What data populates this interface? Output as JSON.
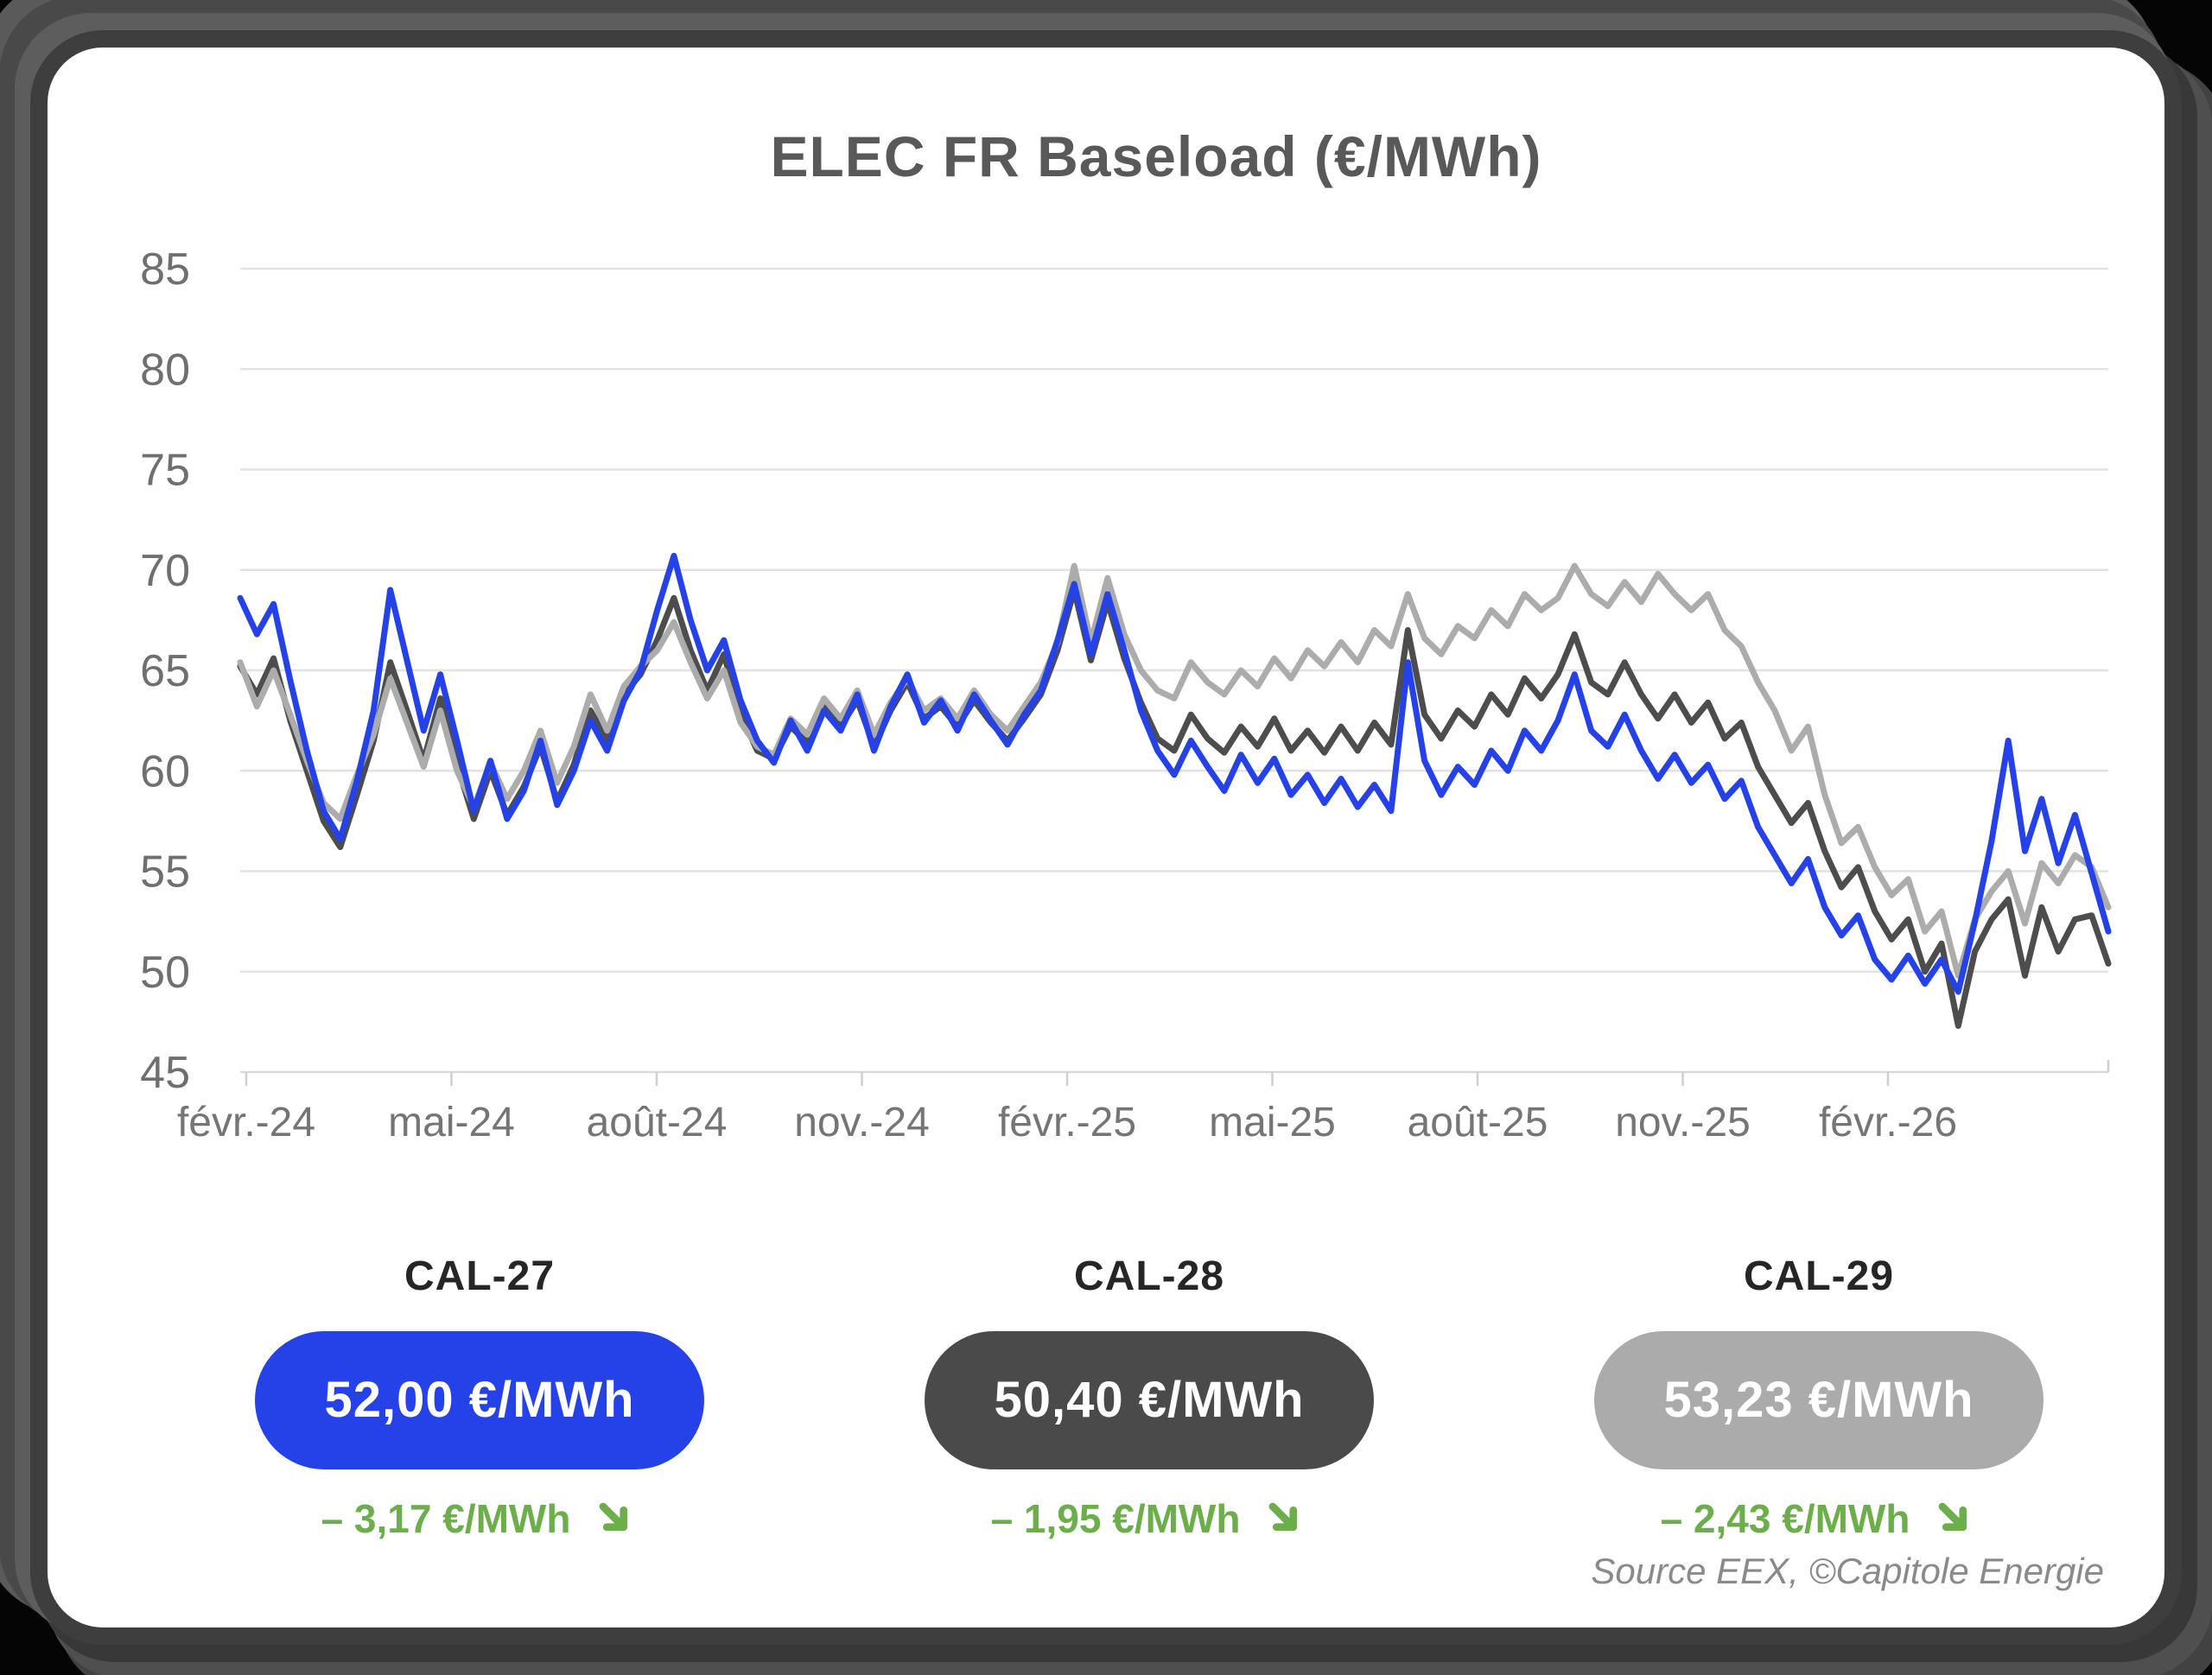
{
  "card": {
    "title": "ELEC FR Baseload (€/MWh)",
    "source": "Source EEX, ©Capitole Energie"
  },
  "colors": {
    "background_frame": "#3e3e3e",
    "page_background": "#050505",
    "card_background": "#ffffff",
    "title_text": "#595959",
    "axis_text": "#757575",
    "gridline": "#e2e2e2",
    "axis_line": "#d9d9d9",
    "cal27_blue": "#2442e8",
    "cal28_dark_gray": "#4d4d4d",
    "cal29_light_gray": "#acacac",
    "change_green": "#6bae4a"
  },
  "chart_data": {
    "type": "line",
    "title": "ELEC FR Baseload (€/MWh)",
    "ylabel": "",
    "xlabel": "",
    "ylim": [
      45,
      85
    ],
    "yticks": [
      45,
      50,
      55,
      60,
      65,
      70,
      75,
      80,
      85
    ],
    "x_tick_labels": [
      "févr.-24",
      "mai-24",
      "août-24",
      "nov.-24",
      "févr.-25",
      "mai-25",
      "août-25",
      "nov.-25",
      "févr.-26"
    ],
    "x_sampling": "weekly points from Feb-2024 to mid-Apr-2026",
    "grid": true,
    "legend_position": "bottom-cards",
    "series": [
      {
        "name": "CAL-27",
        "color": "#2442e8",
        "values": [
          68.6,
          66.8,
          68.3,
          64.5,
          61.0,
          58.0,
          56.6,
          59.5,
          63.0,
          69.0,
          65.5,
          62.0,
          64.8,
          61.5,
          58.0,
          60.5,
          57.6,
          59.0,
          61.5,
          58.3,
          60.0,
          62.5,
          61.0,
          63.5,
          65.0,
          68.0,
          70.7,
          67.5,
          65.0,
          66.5,
          63.5,
          61.5,
          60.4,
          62.5,
          61.0,
          63.0,
          62.0,
          63.8,
          61.0,
          63.2,
          64.8,
          62.4,
          63.5,
          62.0,
          63.8,
          62.5,
          61.3,
          62.8,
          64.0,
          66.5,
          69.3,
          65.8,
          68.8,
          66.0,
          63.0,
          61.0,
          59.8,
          61.5,
          60.2,
          59.0,
          60.8,
          59.4,
          60.6,
          58.8,
          59.8,
          58.4,
          59.6,
          58.2,
          59.3,
          58.0,
          65.4,
          60.5,
          58.8,
          60.2,
          59.3,
          61.0,
          60.0,
          62.0,
          61.0,
          62.5,
          64.8,
          62.0,
          61.2,
          62.8,
          61.0,
          59.6,
          60.8,
          59.4,
          60.3,
          58.6,
          59.5,
          57.2,
          55.8,
          54.4,
          55.6,
          53.2,
          51.8,
          52.8,
          50.6,
          49.6,
          50.8,
          49.4,
          50.6,
          49.0,
          52.5,
          56.5,
          61.5,
          56.0,
          58.6,
          55.4,
          57.8,
          54.9,
          52.0
        ]
      },
      {
        "name": "CAL-28",
        "color": "#4d4d4d",
        "values": [
          65.2,
          63.8,
          65.6,
          62.5,
          60.0,
          57.5,
          56.2,
          58.8,
          61.5,
          65.4,
          63.0,
          60.5,
          63.6,
          60.3,
          57.6,
          60.0,
          57.8,
          59.2,
          61.2,
          58.5,
          60.3,
          63.0,
          61.5,
          63.8,
          64.8,
          66.5,
          68.6,
          66.0,
          64.0,
          65.8,
          62.8,
          61.0,
          60.6,
          62.2,
          61.4,
          63.2,
          62.2,
          63.5,
          61.2,
          63.0,
          64.4,
          62.6,
          63.2,
          62.2,
          63.5,
          62.4,
          61.5,
          62.6,
          63.8,
          66.0,
          69.0,
          65.5,
          68.4,
          65.6,
          63.4,
          61.6,
          61.0,
          62.8,
          61.6,
          60.9,
          62.2,
          61.2,
          62.6,
          61.0,
          62.0,
          60.9,
          62.2,
          61.0,
          62.4,
          61.3,
          67.0,
          62.8,
          61.6,
          63.0,
          62.2,
          63.8,
          62.8,
          64.6,
          63.6,
          64.8,
          66.8,
          64.4,
          63.8,
          65.4,
          63.8,
          62.6,
          63.8,
          62.4,
          63.4,
          61.6,
          62.4,
          60.2,
          58.8,
          57.4,
          58.4,
          56.0,
          54.2,
          55.2,
          53.0,
          51.6,
          52.6,
          50.0,
          51.4,
          47.3,
          51.0,
          52.6,
          53.6,
          49.8,
          53.2,
          51.0,
          52.6,
          52.8,
          50.4
        ]
      },
      {
        "name": "CAL-29",
        "color": "#acacac",
        "values": [
          65.4,
          63.2,
          65.0,
          62.8,
          60.5,
          58.4,
          57.6,
          59.8,
          61.8,
          64.6,
          62.4,
          60.2,
          63.0,
          60.0,
          58.2,
          60.4,
          58.6,
          60.0,
          62.0,
          59.4,
          61.2,
          63.8,
          62.0,
          64.2,
          65.2,
          66.0,
          67.4,
          65.4,
          63.6,
          65.0,
          62.4,
          61.2,
          60.8,
          62.6,
          61.8,
          63.6,
          62.6,
          64.0,
          61.8,
          63.4,
          64.6,
          63.0,
          63.6,
          62.6,
          64.0,
          62.8,
          62.0,
          63.2,
          64.4,
          66.4,
          70.2,
          66.4,
          69.6,
          66.8,
          65.0,
          64.0,
          63.6,
          65.4,
          64.4,
          63.8,
          65.0,
          64.2,
          65.6,
          64.6,
          66.0,
          65.2,
          66.4,
          65.4,
          67.0,
          66.2,
          68.8,
          66.6,
          65.8,
          67.2,
          66.6,
          68.0,
          67.2,
          68.8,
          68.0,
          68.6,
          70.2,
          68.8,
          68.2,
          69.4,
          68.4,
          69.8,
          68.8,
          68.0,
          68.8,
          67.0,
          66.2,
          64.4,
          63.0,
          61.0,
          62.2,
          58.8,
          56.4,
          57.2,
          55.2,
          53.8,
          54.6,
          52.0,
          53.0,
          49.8,
          52.6,
          54.0,
          55.0,
          52.4,
          55.4,
          54.4,
          55.8,
          55.2,
          53.2
        ]
      }
    ]
  },
  "stats": [
    {
      "label": "CAL-27",
      "value": "52,00 €/MWh",
      "change": "– 3,17 €/MWh",
      "pill_color": "#2442e8",
      "change_color": "#6bae4a",
      "direction": "down"
    },
    {
      "label": "CAL-28",
      "value": "50,40 €/MWh",
      "change": "– 1,95 €/MWh",
      "pill_color": "#4a4a4a",
      "change_color": "#6bae4a",
      "direction": "down"
    },
    {
      "label": "CAL-29",
      "value": "53,23 €/MWh",
      "change": "– 2,43 €/MWh",
      "pill_color": "#ababab",
      "change_color": "#6bae4a",
      "direction": "down"
    }
  ]
}
